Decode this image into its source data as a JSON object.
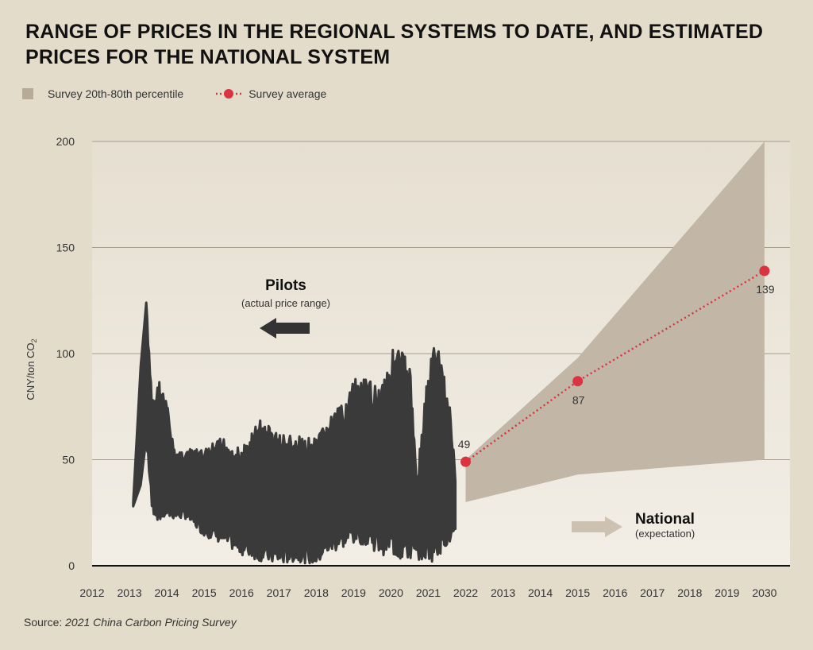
{
  "title": "RANGE OF PRICES IN THE REGIONAL SYSTEMS TO DATE, AND ESTIMATED PRICES FOR THE NATIONAL SYSTEM",
  "legend": {
    "band_label": "Survey 20th-80th percentile",
    "avg_label": "Survey average"
  },
  "source": {
    "prefix": "Source: ",
    "name": "2021 China Carbon Pricing Survey"
  },
  "colors": {
    "background": "#e4dccb",
    "plot_background": "#ece6da",
    "band": "#c2b7a6",
    "pilot_fill": "#3a3a3a",
    "average": "#d9343f",
    "gridline": "#a59d90",
    "arrow_pilot": "#333333",
    "arrow_national": "#cdc2b1"
  },
  "annotations": {
    "pilots_title": "Pilots",
    "pilots_sub": "(actual price range)",
    "national_title": "National",
    "national_sub": "(expectation)"
  },
  "chart_data": {
    "type": "area",
    "ylabel": "CNY/ton CO",
    "ylabel_sub": "2",
    "ylim": [
      0,
      200
    ],
    "yticks": [
      0,
      50,
      100,
      150,
      200
    ],
    "grid": true,
    "legend_position": "top-left",
    "x_tick_labels": [
      "2012",
      "2013",
      "2014",
      "2015",
      "2016",
      "2017",
      "2018",
      "2019",
      "2020",
      "2021",
      "2022",
      "2013",
      "2014",
      "2015",
      "2016",
      "2017",
      "2018",
      "2019",
      "2030"
    ],
    "pilot_range": {
      "name": "Pilots",
      "x": [
        2013.1,
        2013.3,
        2013.45,
        2013.6,
        2013.8,
        2014.0,
        2014.2,
        2014.5,
        2015.0,
        2015.5,
        2016.0,
        2016.5,
        2017.0,
        2017.5,
        2018.0,
        2018.3,
        2018.7,
        2019.0,
        2019.3,
        2019.7,
        2020.0,
        2020.2,
        2020.5,
        2020.7,
        2021.0,
        2021.2,
        2021.4,
        2021.6,
        2021.75
      ],
      "high": [
        30,
        94,
        124,
        80,
        88,
        78,
        55,
        55,
        55,
        61,
        55,
        70,
        63,
        61,
        60,
        70,
        76,
        88,
        88,
        86,
        102,
        104,
        97,
        43,
        95,
        108,
        95,
        74,
        37
      ],
      "low": [
        28,
        38,
        60,
        25,
        20,
        22,
        22,
        22,
        14,
        10,
        5,
        2,
        0,
        2,
        0,
        5,
        8,
        10,
        10,
        5,
        5,
        2,
        2,
        3,
        2,
        2,
        8,
        10,
        14
      ]
    },
    "series": [
      {
        "name": "Survey average",
        "x": [
          "2022",
          "2015",
          "2030"
        ],
        "values": [
          49,
          87,
          139
        ],
        "labels": [
          "49",
          "87",
          "139"
        ]
      },
      {
        "name": "Survey 20th-80th percentile",
        "x": [
          "2022",
          "2015",
          "2030"
        ],
        "upper": [
          50,
          98,
          200
        ],
        "lower": [
          30,
          43,
          50
        ]
      }
    ]
  }
}
